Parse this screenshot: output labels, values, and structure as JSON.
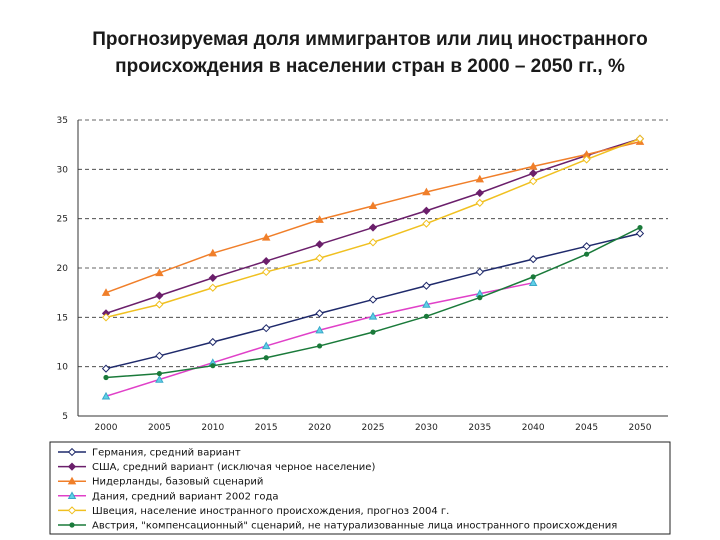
{
  "title_line1": "Прогнозируемая доля иммигрантов или лиц иностранного",
  "title_line2": "происхождения в населении стран в 2000 – 2050 гг., %",
  "chart_data": {
    "type": "line",
    "title": "Прогнозируемая доля иммигрантов или лиц иностранного происхождения в населении стран в 2000 – 2050 гг., %",
    "xlabel": "",
    "ylabel": "",
    "x": [
      2000,
      2005,
      2010,
      2015,
      2020,
      2025,
      2030,
      2035,
      2040,
      2045,
      2050
    ],
    "ylim": [
      5,
      35
    ],
    "yticks": [
      5,
      10,
      15,
      20,
      25,
      30,
      35
    ],
    "grid": "horizontal dashed",
    "legend_position": "bottom",
    "series": [
      {
        "name": "Германия, средний вариант",
        "color": "#1f2a6b",
        "marker": "diamond-open",
        "values": [
          9.8,
          11.1,
          12.5,
          13.9,
          15.4,
          16.8,
          18.2,
          19.6,
          20.9,
          22.2,
          23.5
        ]
      },
      {
        "name": "США, средний вариант (исключая черное население)",
        "color": "#6b1f6b",
        "marker": "diamond",
        "values": [
          15.4,
          17.2,
          19.0,
          20.7,
          22.4,
          24.1,
          25.8,
          27.6,
          29.6,
          31.4,
          33.1
        ]
      },
      {
        "name": "Нидерланды, базовый сценарий",
        "color": "#f07f2a",
        "marker": "triangle",
        "values": [
          17.5,
          19.5,
          21.5,
          23.1,
          24.9,
          26.3,
          27.7,
          29.0,
          30.3,
          31.5,
          32.8
        ]
      },
      {
        "name": "Дания, средний вариант 2002 года",
        "color": "#e040c8",
        "marker": "triangle-cyan",
        "values": [
          7.0,
          8.7,
          10.4,
          12.1,
          13.7,
          15.1,
          16.3,
          17.4,
          18.5,
          null,
          null
        ]
      },
      {
        "name": "Швеция, население иностранного происхождения, прогноз 2004 г.",
        "color": "#f0c020",
        "marker": "diamond-open",
        "values": [
          15.0,
          16.3,
          18.0,
          19.6,
          21.0,
          22.6,
          24.5,
          26.6,
          28.8,
          31.0,
          33.1
        ]
      },
      {
        "name": "Австрия, \"компенсационный\" сценарий, не натурализованные лица иностранного происхождения",
        "color": "#1a7a3a",
        "marker": "dot",
        "values": [
          8.9,
          9.3,
          10.1,
          10.9,
          12.1,
          13.5,
          15.1,
          17.0,
          19.1,
          21.4,
          24.1
        ]
      }
    ]
  }
}
